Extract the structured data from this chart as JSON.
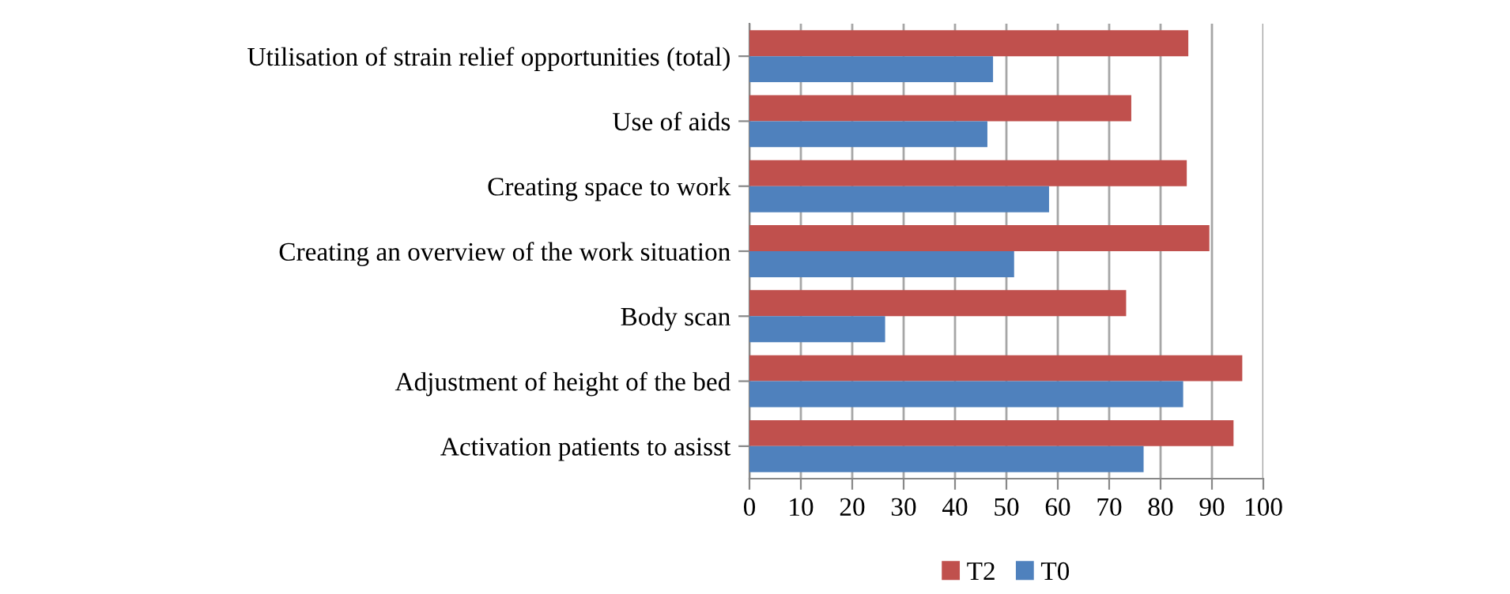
{
  "chart_data": {
    "type": "bar",
    "orientation": "horizontal",
    "categories": [
      "Utilisation of strain relief opportunities (total)",
      "Use of aids",
      "Creating space to work",
      "Creating an overview of the work situation",
      "Body scan",
      "Adjustment of height of the bed",
      "Activation patients to asisst"
    ],
    "series": [
      {
        "name": "T2",
        "color": "#c0504d",
        "values": [
          85.4,
          74.3,
          85.1,
          89.5,
          73.3,
          95.9,
          94.2
        ]
      },
      {
        "name": "T0",
        "color": "#4f81bd",
        "values": [
          47.4,
          46.3,
          58.3,
          51.5,
          26.4,
          84.4,
          76.7
        ]
      }
    ],
    "xlim": [
      0,
      100
    ],
    "xticks": [
      0,
      10,
      20,
      30,
      40,
      50,
      60,
      70,
      80,
      90,
      100
    ],
    "grid": "x",
    "legend": "bottom"
  }
}
